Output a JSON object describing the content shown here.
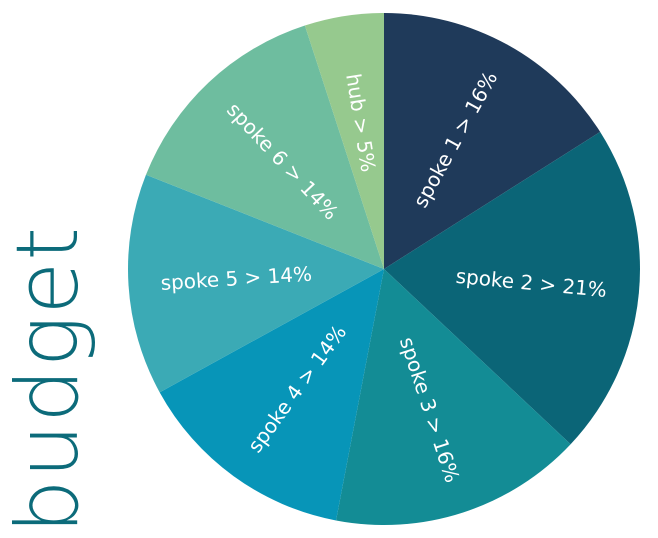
{
  "title": "budget",
  "colors": {
    "title": "#0c6b7a"
  },
  "chart_data": {
    "type": "pie",
    "start_angle": "top, clockwise",
    "slices": [
      {
        "label": "spoke 1 > 16%",
        "value": 16,
        "color": "#1f3a5a"
      },
      {
        "label": "spoke 2 > 21%",
        "value": 21,
        "color": "#0b6577"
      },
      {
        "label": "spoke 3 > 16%",
        "value": 16,
        "color": "#138c95"
      },
      {
        "label": "spoke 4 > 14%",
        "value": 14,
        "color": "#0795b8"
      },
      {
        "label": "spoke 5 > 14%",
        "value": 14,
        "color": "#3baab5"
      },
      {
        "label": "spoke 6 > 14%",
        "value": 14,
        "color": "#6ebd9f"
      },
      {
        "label": "hub > 5%",
        "value": 5,
        "color": "#96c98e"
      }
    ]
  }
}
